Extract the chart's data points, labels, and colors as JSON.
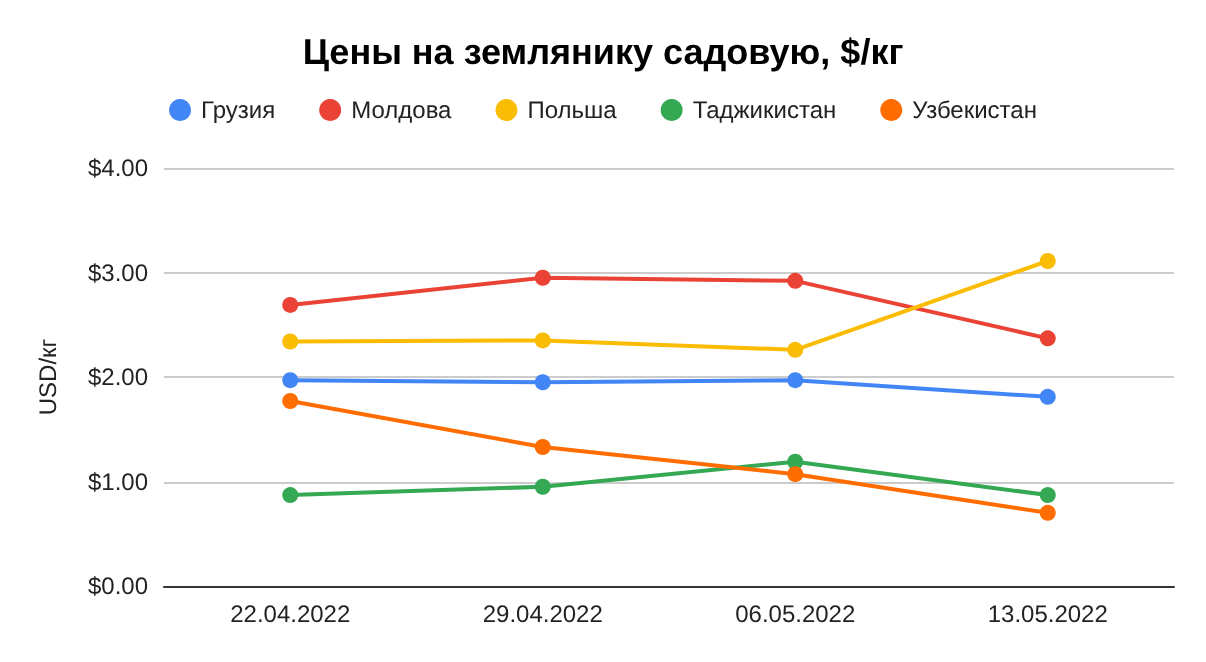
{
  "chart_data": {
    "type": "line",
    "title": "Цены на землянику садовую, $/кг",
    "ylabel": "USD/кг",
    "categories": [
      "22.04.2022",
      "29.04.2022",
      "06.05.2022",
      "13.05.2022"
    ],
    "series": [
      {
        "name": "Грузия",
        "color": "#4285f4",
        "values": [
          1.97,
          1.95,
          1.97,
          1.81
        ]
      },
      {
        "name": "Молдова",
        "color": "#ea4335",
        "values": [
          2.69,
          2.95,
          2.92,
          2.37
        ]
      },
      {
        "name": "Польша",
        "color": "#fbbc04",
        "values": [
          2.34,
          2.35,
          2.26,
          3.11
        ]
      },
      {
        "name": "Таджикистан",
        "color": "#34a853",
        "values": [
          0.87,
          0.95,
          1.19,
          0.87
        ]
      },
      {
        "name": "Узбекистан",
        "color": "#ff6d01",
        "values": [
          1.77,
          1.33,
          1.07,
          0.7
        ]
      }
    ],
    "ylim": [
      0,
      4
    ],
    "yticks": [
      {
        "value": 0,
        "label": "$0.00"
      },
      {
        "value": 1,
        "label": "$1.00"
      },
      {
        "value": 2,
        "label": "$2.00"
      },
      {
        "value": 3,
        "label": "$3.00"
      },
      {
        "value": 4,
        "label": "$4.00"
      }
    ],
    "grid": "y",
    "legend": "top",
    "marker": "circle",
    "line_style": "solid"
  }
}
